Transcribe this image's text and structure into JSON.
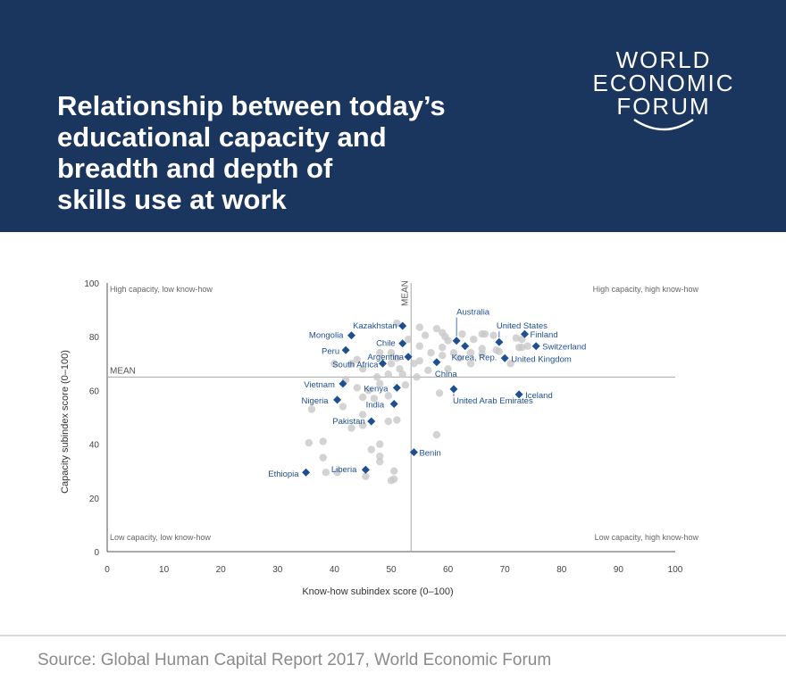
{
  "header": {
    "title": "Relationship between today’s\neducational capacity and\nbreadth and depth of\nskills use at work",
    "background": "#1a355e",
    "logo_lines": [
      "WORLD",
      "ECONOMIC",
      "FORUM"
    ]
  },
  "colors": {
    "highlight": "#1d4f91",
    "background_points": "#c8c8c8",
    "mean_line": "#a6a6a6"
  },
  "chart_data": {
    "type": "scatter",
    "xlabel": "Know-how subindex score (0–100)",
    "ylabel": "Capacity subindex score (0–100)",
    "xlim": [
      0,
      100
    ],
    "ylim": [
      0,
      100
    ],
    "xticks": [
      0,
      10,
      20,
      30,
      40,
      50,
      60,
      70,
      80,
      90,
      100
    ],
    "yticks": [
      0,
      20,
      40,
      60,
      80,
      100
    ],
    "grid": false,
    "mean_x": 53.5,
    "mean_y": 65,
    "mean_label_x": "MEAN",
    "mean_label_y": "MEAN",
    "quadrants": {
      "top_left": "High capacity, low know-how",
      "top_right": "High capacity, high know-how",
      "bottom_left": "Low capacity, low know-how",
      "bottom_right": "Low capacity, high know-how"
    },
    "highlighted": [
      {
        "name": "Australia",
        "x": 61.5,
        "y": 78.5
      },
      {
        "name": "Finland",
        "x": 73.5,
        "y": 81
      },
      {
        "name": "United States",
        "x": 69,
        "y": 78
      },
      {
        "name": "Switzerland",
        "x": 75.5,
        "y": 76.5
      },
      {
        "name": "Korea, Rep.",
        "x": 63,
        "y": 76.5
      },
      {
        "name": "United Kingdom",
        "x": 70,
        "y": 72
      },
      {
        "name": "China",
        "x": 58,
        "y": 70.5
      },
      {
        "name": "Iceland",
        "x": 72.5,
        "y": 58.5
      },
      {
        "name": "United Arab Emirates",
        "x": 61,
        "y": 60.5
      },
      {
        "name": "Benin",
        "x": 54,
        "y": 37
      },
      {
        "name": "Kazakhstan",
        "x": 52,
        "y": 84
      },
      {
        "name": "Mongolia",
        "x": 43,
        "y": 80.5
      },
      {
        "name": "Chile",
        "x": 52,
        "y": 77.5
      },
      {
        "name": "Peru",
        "x": 42,
        "y": 75
      },
      {
        "name": "Argentina",
        "x": 53,
        "y": 72.5
      },
      {
        "name": "South Africa",
        "x": 48.5,
        "y": 70
      },
      {
        "name": "Vietnam",
        "x": 41.5,
        "y": 62.5
      },
      {
        "name": "Kenya",
        "x": 51,
        "y": 61
      },
      {
        "name": "Nigeria",
        "x": 40.5,
        "y": 56.5
      },
      {
        "name": "India",
        "x": 50.5,
        "y": 55
      },
      {
        "name": "Pakistan",
        "x": 46.5,
        "y": 48.5
      },
      {
        "name": "Liberia",
        "x": 45.5,
        "y": 30.5
      },
      {
        "name": "Ethiopia",
        "x": 35,
        "y": 29.5
      }
    ],
    "others": [
      {
        "x": 51,
        "y": 85
      },
      {
        "x": 55,
        "y": 83.5
      },
      {
        "x": 58,
        "y": 83
      },
      {
        "x": 59,
        "y": 81.5
      },
      {
        "x": 56,
        "y": 80.5
      },
      {
        "x": 59.5,
        "y": 80
      },
      {
        "x": 60,
        "y": 78.5
      },
      {
        "x": 62.5,
        "y": 81
      },
      {
        "x": 64.5,
        "y": 79
      },
      {
        "x": 66,
        "y": 81
      },
      {
        "x": 66.5,
        "y": 81
      },
      {
        "x": 68,
        "y": 80.5
      },
      {
        "x": 72,
        "y": 79.5
      },
      {
        "x": 73,
        "y": 79
      },
      {
        "x": 53,
        "y": 79
      },
      {
        "x": 55,
        "y": 76.5
      },
      {
        "x": 59,
        "y": 76
      },
      {
        "x": 61,
        "y": 74
      },
      {
        "x": 64,
        "y": 74
      },
      {
        "x": 66,
        "y": 75.5
      },
      {
        "x": 68.5,
        "y": 75
      },
      {
        "x": 69,
        "y": 74.5
      },
      {
        "x": 72.5,
        "y": 76
      },
      {
        "x": 73,
        "y": 76
      },
      {
        "x": 74,
        "y": 76.5
      },
      {
        "x": 57,
        "y": 74
      },
      {
        "x": 59,
        "y": 73
      },
      {
        "x": 62,
        "y": 72
      },
      {
        "x": 66,
        "y": 73.5
      },
      {
        "x": 71,
        "y": 70
      },
      {
        "x": 54,
        "y": 70
      },
      {
        "x": 55,
        "y": 71
      },
      {
        "x": 56.5,
        "y": 67.5
      },
      {
        "x": 60,
        "y": 68
      },
      {
        "x": 64,
        "y": 70
      },
      {
        "x": 48,
        "y": 74
      },
      {
        "x": 50,
        "y": 74
      },
      {
        "x": 51,
        "y": 72
      },
      {
        "x": 50,
        "y": 70
      },
      {
        "x": 51.5,
        "y": 68
      },
      {
        "x": 52,
        "y": 66
      },
      {
        "x": 54.5,
        "y": 65
      },
      {
        "x": 49.5,
        "y": 66
      },
      {
        "x": 47.5,
        "y": 65
      },
      {
        "x": 45,
        "y": 68
      },
      {
        "x": 44,
        "y": 71.5
      },
      {
        "x": 43,
        "y": 70
      },
      {
        "x": 40,
        "y": 70
      },
      {
        "x": 42,
        "y": 64
      },
      {
        "x": 44,
        "y": 61
      },
      {
        "x": 48,
        "y": 62.5
      },
      {
        "x": 46,
        "y": 60
      },
      {
        "x": 49.5,
        "y": 58
      },
      {
        "x": 52.5,
        "y": 62
      },
      {
        "x": 45,
        "y": 57.5
      },
      {
        "x": 47,
        "y": 57
      },
      {
        "x": 41.5,
        "y": 54
      },
      {
        "x": 45,
        "y": 51
      },
      {
        "x": 45,
        "y": 47
      },
      {
        "x": 43,
        "y": 46
      },
      {
        "x": 51,
        "y": 49
      },
      {
        "x": 49.5,
        "y": 48.5
      },
      {
        "x": 36,
        "y": 53
      },
      {
        "x": 58.5,
        "y": 59
      },
      {
        "x": 58,
        "y": 43.5
      },
      {
        "x": 35.5,
        "y": 40.5
      },
      {
        "x": 38,
        "y": 41
      },
      {
        "x": 48,
        "y": 40
      },
      {
        "x": 46.5,
        "y": 38
      },
      {
        "x": 38,
        "y": 35
      },
      {
        "x": 48,
        "y": 35.5
      },
      {
        "x": 48,
        "y": 33.5
      },
      {
        "x": 38.5,
        "y": 29.5
      },
      {
        "x": 50.5,
        "y": 30
      },
      {
        "x": 50.5,
        "y": 27
      },
      {
        "x": 50,
        "y": 26.5
      },
      {
        "x": 45.5,
        "y": 28
      },
      {
        "x": 40.5,
        "y": 29.5
      }
    ]
  },
  "source": "Source: Global Human Capital Report 2017, World Economic Forum"
}
